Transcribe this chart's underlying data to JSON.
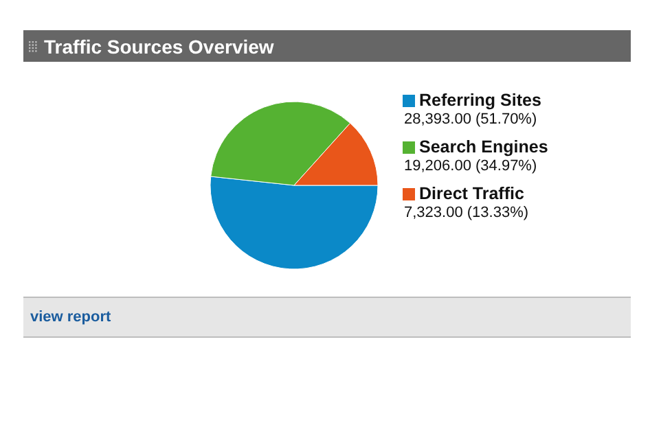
{
  "chart_data": {
    "type": "pie",
    "title": "Traffic Sources Overview",
    "categories": [
      "Referring Sites",
      "Search Engines",
      "Direct Traffic"
    ],
    "values": [
      28393,
      19206,
      7323
    ],
    "value_labels": [
      "28,393.00 (51.70%)",
      "19,206.00 (34.97%)",
      "7,323.00 (13.33%)"
    ],
    "colors": [
      "#0b89c8",
      "#55b232",
      "#e9561a"
    ],
    "legend": "right",
    "annotations": [
      "view report"
    ]
  }
}
